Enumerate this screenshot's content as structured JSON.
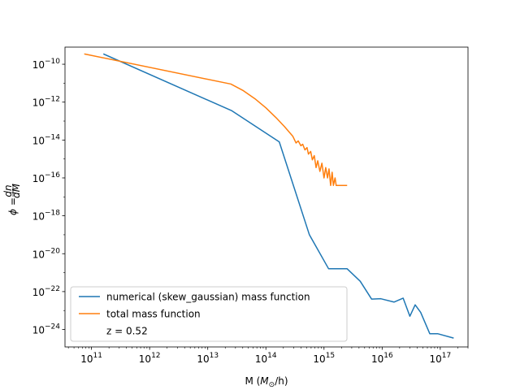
{
  "chart_data": {
    "type": "line",
    "xlabel_prefix": "M (",
    "xlabel_math": "M",
    "xlabel_sub": "⊙",
    "xlabel_suffix": "/h)",
    "ylabel_phi": "ϕ",
    "ylabel_equals": "=",
    "ylabel_num": "dn",
    "ylabel_den": "dM",
    "xscale": "log",
    "yscale": "log",
    "xlim": [
      35000000000.0,
      3e+17
    ],
    "ylim": [
      1.2e-25,
      8e-10
    ],
    "grid": false,
    "legend_position": "lower-left",
    "x_ticks": [
      {
        "exp": 11,
        "label": "10",
        "sup": "11"
      },
      {
        "exp": 12,
        "label": "10",
        "sup": "12"
      },
      {
        "exp": 13,
        "label": "10",
        "sup": "13"
      },
      {
        "exp": 14,
        "label": "10",
        "sup": "14"
      },
      {
        "exp": 15,
        "label": "10",
        "sup": "15"
      },
      {
        "exp": 16,
        "label": "10",
        "sup": "16"
      },
      {
        "exp": 17,
        "label": "10",
        "sup": "17"
      }
    ],
    "y_ticks": [
      {
        "exp": -10,
        "label": "10",
        "sup": "−10"
      },
      {
        "exp": -12,
        "label": "10",
        "sup": "−12"
      },
      {
        "exp": -14,
        "label": "10",
        "sup": "−14"
      },
      {
        "exp": -16,
        "label": "10",
        "sup": "−16"
      },
      {
        "exp": -18,
        "label": "10",
        "sup": "−18"
      },
      {
        "exp": -20,
        "label": "10",
        "sup": "−20"
      },
      {
        "exp": -22,
        "label": "10",
        "sup": "−22"
      },
      {
        "exp": -24,
        "label": "10",
        "sup": "−24"
      }
    ],
    "series": [
      {
        "name": "numerical (skew_gaussian) mass function",
        "color": "#1f77b4",
        "points": [
          [
            160000000000.0,
            3.5e-10
          ],
          [
            26000000000000.0,
            3.5e-13
          ],
          [
            170000000000000.0,
            8e-15
          ],
          [
            560000000000000.0,
            1e-19
          ],
          [
            1200000000000000.0,
            1.6e-21
          ],
          [
            2500000000000000.0,
            1.6e-21
          ],
          [
            4200000000000000.0,
            3.5e-22
          ],
          [
            6600000000000000.0,
            4e-23
          ],
          [
            9500000000000000.0,
            4.2e-23
          ],
          [
            1.6e+16,
            2.8e-23
          ],
          [
            2.3e+16,
            4.5e-23
          ],
          [
            3e+16,
            5e-24
          ],
          [
            3.7e+16,
            2e-23
          ],
          [
            4.6e+16,
            8e-24
          ],
          [
            6.6e+16,
            6e-25
          ],
          [
            9e+16,
            6e-25
          ],
          [
            1.7e+17,
            3.5e-25
          ]
        ]
      },
      {
        "name": "total mass function",
        "color": "#ff7f0e",
        "points": [
          [
            75000000000.0,
            3.5e-10
          ],
          [
            25000000000000.0,
            9e-12
          ],
          [
            40000000000000.0,
            4.2e-12
          ],
          [
            65000000000000.0,
            1.5e-12
          ],
          [
            100000000000000.0,
            5e-13
          ],
          [
            150000000000000.0,
            1.5e-13
          ],
          [
            210000000000000.0,
            5e-14
          ],
          [
            290000000000000.0,
            1.6e-14
          ],
          [
            330000000000000.0,
            7e-15
          ],
          [
            360000000000000.0,
            9e-15
          ],
          [
            400000000000000.0,
            5e-15
          ],
          [
            430000000000000.0,
            6e-15
          ],
          [
            470000000000000.0,
            3e-15
          ],
          [
            510000000000000.0,
            4e-15
          ],
          [
            540000000000000.0,
            1.8e-15
          ],
          [
            590000000000000.0,
            2.5e-15
          ],
          [
            630000000000000.0,
            9e-16
          ],
          [
            680000000000000.0,
            1.5e-15
          ],
          [
            730000000000000.0,
            3.5e-16
          ],
          [
            780000000000000.0,
            8e-16
          ],
          [
            850000000000000.0,
            2.2e-16
          ],
          [
            920000000000000.0,
            6e-16
          ],
          [
            1000000000000000.0,
            1e-16
          ],
          [
            1070000000000000.0,
            3.5e-16
          ],
          [
            1150000000000000.0,
            1e-16
          ],
          [
            1220000000000000.0,
            3e-16
          ],
          [
            1300000000000000.0,
            4e-17
          ],
          [
            1380000000000000.0,
            2e-16
          ],
          [
            1450000000000000.0,
            4e-17
          ],
          [
            1550000000000000.0,
            1e-16
          ],
          [
            1620000000000000.0,
            4e-17
          ],
          [
            2500000000000000.0,
            4e-17
          ]
        ]
      }
    ],
    "legend_extra": "z = 0.52"
  }
}
